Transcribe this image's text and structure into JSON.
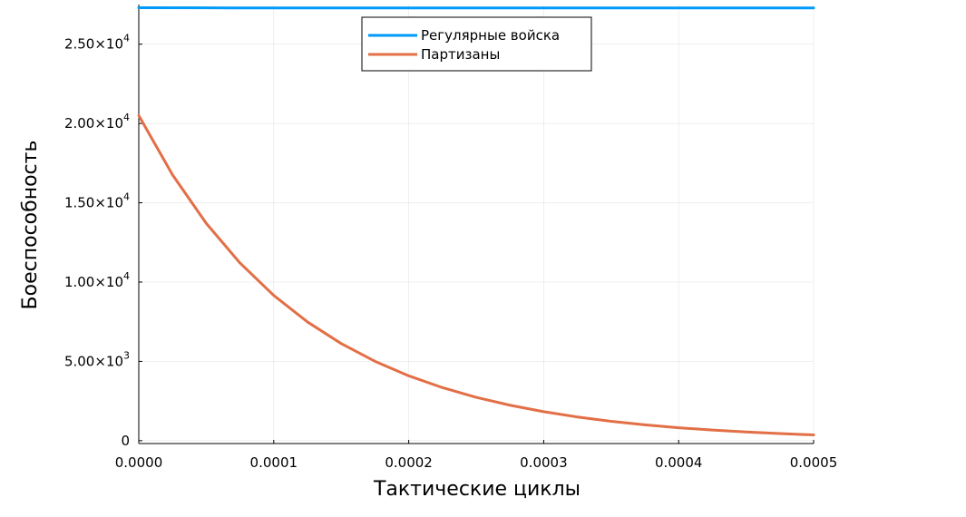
{
  "chart_data": {
    "type": "line",
    "xlabel": "Тактические циклы",
    "ylabel": "Боеспособность",
    "xlim": [
      0,
      0.0005
    ],
    "ylim": [
      -180,
      27500
    ],
    "x_ticks": [
      {
        "value": 0.0,
        "label": "0.0000"
      },
      {
        "value": 0.0001,
        "label": "0.0001"
      },
      {
        "value": 0.0002,
        "label": "0.0002"
      },
      {
        "value": 0.0003,
        "label": "0.0003"
      },
      {
        "value": 0.0004,
        "label": "0.0004"
      },
      {
        "value": 0.0005,
        "label": "0.0005"
      }
    ],
    "y_ticks": [
      {
        "value": 0,
        "mantissa": "0",
        "exponent": ""
      },
      {
        "value": 5000,
        "mantissa": "5.00×10",
        "exponent": "3"
      },
      {
        "value": 10000,
        "mantissa": "1.00×10",
        "exponent": "4"
      },
      {
        "value": 15000,
        "mantissa": "1.50×10",
        "exponent": "4"
      },
      {
        "value": 20000,
        "mantissa": "2.00×10",
        "exponent": "4"
      },
      {
        "value": 25000,
        "mantissa": "2.50×10",
        "exponent": "4"
      }
    ],
    "grid": true,
    "legend_position": "top-center",
    "series": [
      {
        "name": "Регулярные войска",
        "color": "#009af9",
        "x": [
          0,
          5e-05,
          0.0001,
          0.00015,
          0.0002,
          0.00025,
          0.0003,
          0.00035,
          0.0004,
          0.00045,
          0.0005
        ],
        "y": [
          27300,
          27290,
          27285,
          27285,
          27285,
          27285,
          27285,
          27285,
          27285,
          27285,
          27285
        ]
      },
      {
        "name": "Партизаны",
        "color": "#e26f46",
        "x": [
          0,
          2.5e-05,
          5e-05,
          7.5e-05,
          0.0001,
          0.000125,
          0.00015,
          0.000175,
          0.0002,
          0.000225,
          0.00025,
          0.000275,
          0.0003,
          0.000325,
          0.00035,
          0.000375,
          0.0004,
          0.000425,
          0.00045,
          0.000475,
          0.0005
        ],
        "y": [
          20500,
          16760,
          13702,
          11202,
          9158,
          7487,
          6121,
          5004,
          4091,
          3345,
          2734,
          2235,
          1828,
          1494,
          1222,
          999,
          817,
          668,
          546,
          446,
          365
        ]
      }
    ]
  }
}
